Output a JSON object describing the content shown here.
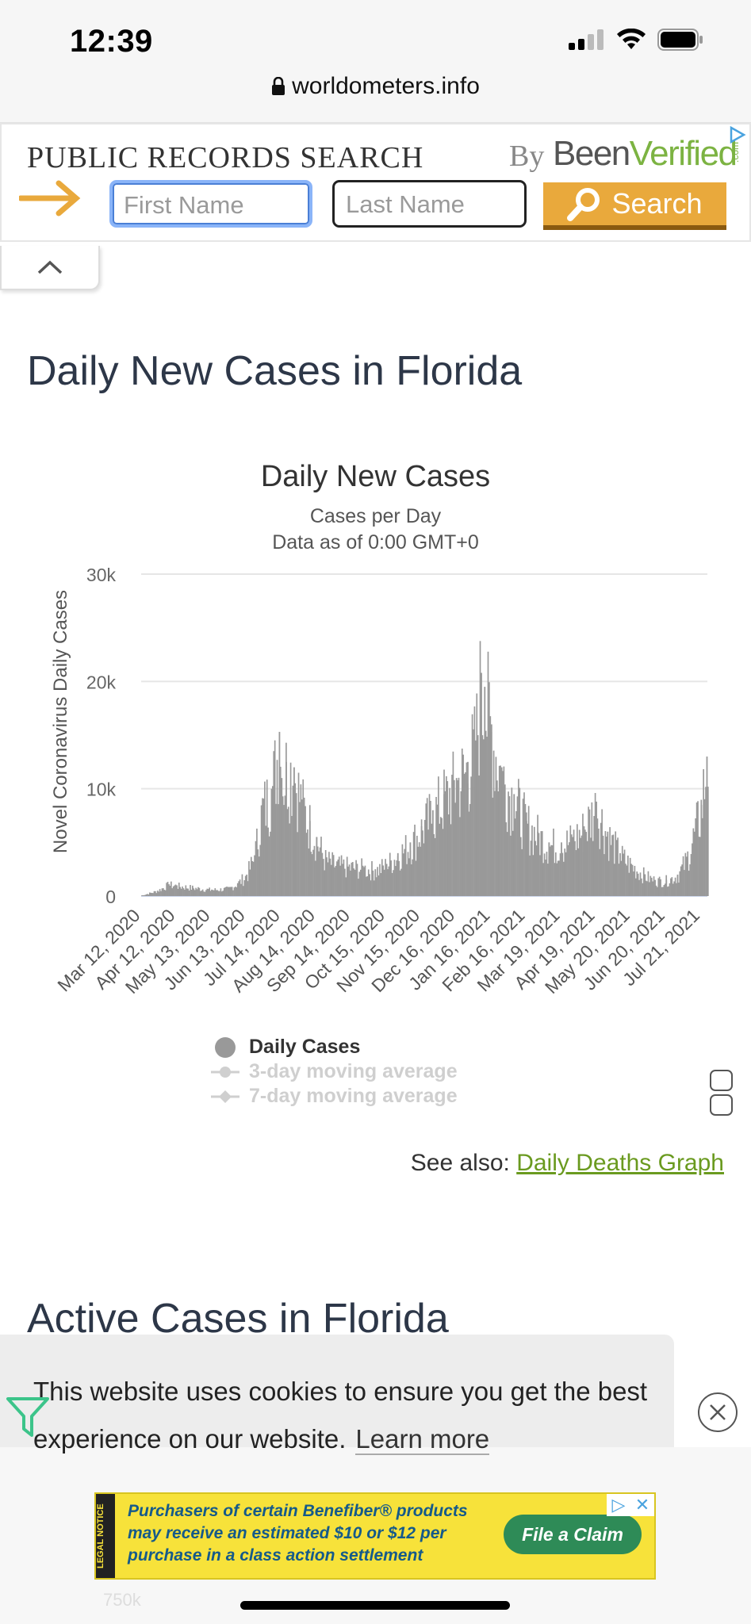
{
  "status_bar": {
    "time": "12:39"
  },
  "browser": {
    "url": "worldometers.info"
  },
  "ad_banner": {
    "title": "PUBLIC RECORDS SEARCH",
    "by": "By",
    "brand_part1": "Been",
    "brand_part2": "Verified",
    "brand_suffix": ".com",
    "first_name_placeholder": "First Name",
    "last_name_placeholder": "Last Name",
    "search_label": "Search",
    "accent_color": "#e9a93c"
  },
  "sections": {
    "daily_heading": "Daily New Cases in Florida",
    "active_heading": "Active Cases in Florida"
  },
  "chart_data": {
    "type": "bar",
    "title": "Daily New Cases",
    "subtitle_line1": "Cases per Day",
    "subtitle_line2": "Data as of 0:00 GMT+0",
    "xlabel": "",
    "ylabel": "Novel Coronavirus Daily Cases",
    "ylim": [
      0,
      30000
    ],
    "y_ticks": [
      "0",
      "10k",
      "20k",
      "30k"
    ],
    "x_tick_labels": [
      "Mar 12, 2020",
      "Apr 12, 2020",
      "May 13, 2020",
      "Jun 13, 2020",
      "Jul 14, 2020",
      "Aug 14, 2020",
      "Sep 14, 2020",
      "Oct 15, 2020",
      "Nov 15, 2020",
      "Dec 16, 2020",
      "Jan 16, 2021",
      "Feb 16, 2021",
      "Mar 19, 2021",
      "Apr 19, 2021",
      "May 20, 2021",
      "Jun 20, 2021",
      "Jul 21, 2021"
    ],
    "bar_color": "#999999",
    "grid": true,
    "series": [
      {
        "name": "Daily Cases",
        "values": [
          {
            "date": "2020-03-12",
            "y": 50
          },
          {
            "date": "2020-03-26",
            "y": 500
          },
          {
            "date": "2020-04-05",
            "y": 1100
          },
          {
            "date": "2020-04-12",
            "y": 1000
          },
          {
            "date": "2020-04-26",
            "y": 800
          },
          {
            "date": "2020-05-13",
            "y": 600
          },
          {
            "date": "2020-05-28",
            "y": 700
          },
          {
            "date": "2020-06-05",
            "y": 1200
          },
          {
            "date": "2020-06-13",
            "y": 2000
          },
          {
            "date": "2020-06-20",
            "y": 3800
          },
          {
            "date": "2020-06-27",
            "y": 8500
          },
          {
            "date": "2020-07-05",
            "y": 10000
          },
          {
            "date": "2020-07-12",
            "y": 15300
          },
          {
            "date": "2020-07-14",
            "y": 11000
          },
          {
            "date": "2020-07-18",
            "y": 12500
          },
          {
            "date": "2020-07-25",
            "y": 12000
          },
          {
            "date": "2020-08-01",
            "y": 9000
          },
          {
            "date": "2020-08-08",
            "y": 7000
          },
          {
            "date": "2020-08-14",
            "y": 5500
          },
          {
            "date": "2020-08-22",
            "y": 3500
          },
          {
            "date": "2020-09-01",
            "y": 3000
          },
          {
            "date": "2020-09-14",
            "y": 2800
          },
          {
            "date": "2020-09-25",
            "y": 2700
          },
          {
            "date": "2020-10-05",
            "y": 2500
          },
          {
            "date": "2020-10-15",
            "y": 3000
          },
          {
            "date": "2020-10-25",
            "y": 4000
          },
          {
            "date": "2020-11-05",
            "y": 5000
          },
          {
            "date": "2020-11-15",
            "y": 6500
          },
          {
            "date": "2020-11-25",
            "y": 8000
          },
          {
            "date": "2020-12-05",
            "y": 9500
          },
          {
            "date": "2020-12-16",
            "y": 11000
          },
          {
            "date": "2020-12-26",
            "y": 12500
          },
          {
            "date": "2021-01-02",
            "y": 14500
          },
          {
            "date": "2021-01-07",
            "y": 20800
          },
          {
            "date": "2021-01-10",
            "y": 19500
          },
          {
            "date": "2021-01-16",
            "y": 16000
          },
          {
            "date": "2021-01-25",
            "y": 12000
          },
          {
            "date": "2021-02-05",
            "y": 9500
          },
          {
            "date": "2021-02-16",
            "y": 7000
          },
          {
            "date": "2021-02-26",
            "y": 6000
          },
          {
            "date": "2021-03-08",
            "y": 5000
          },
          {
            "date": "2021-03-19",
            "y": 5000
          },
          {
            "date": "2021-03-29",
            "y": 5500
          },
          {
            "date": "2021-04-08",
            "y": 6500
          },
          {
            "date": "2021-04-19",
            "y": 8800
          },
          {
            "date": "2021-04-29",
            "y": 6000
          },
          {
            "date": "2021-05-10",
            "y": 4000
          },
          {
            "date": "2021-05-20",
            "y": 3000
          },
          {
            "date": "2021-06-01",
            "y": 2000
          },
          {
            "date": "2021-06-10",
            "y": 1500
          },
          {
            "date": "2021-06-20",
            "y": 1500
          },
          {
            "date": "2021-06-30",
            "y": 2000
          },
          {
            "date": "2021-07-08",
            "y": 3500
          },
          {
            "date": "2021-07-15",
            "y": 6000
          },
          {
            "date": "2021-07-21",
            "y": 8500
          },
          {
            "date": "2021-07-26",
            "y": 13000
          }
        ]
      }
    ],
    "legend": [
      {
        "label": "Daily Cases",
        "active": true
      },
      {
        "label": "3-day moving average",
        "active": false
      },
      {
        "label": "7-day moving average",
        "active": false
      }
    ],
    "legend_position": "bottom"
  },
  "see_also": {
    "prefix": "See also:",
    "link": "Daily Deaths Graph"
  },
  "cookie_banner": {
    "text": "This website uses cookies to ensure you get the best experience on our website.",
    "learn_more": "Learn more"
  },
  "bottom_ad": {
    "legal": "LEGAL NOTICE",
    "text": "Purchasers of certain Benefiber® products may receive an estimated $10 or $12 per purchase in a class action settlement",
    "button": "File a Claim"
  },
  "below_fold_peek": "750k"
}
